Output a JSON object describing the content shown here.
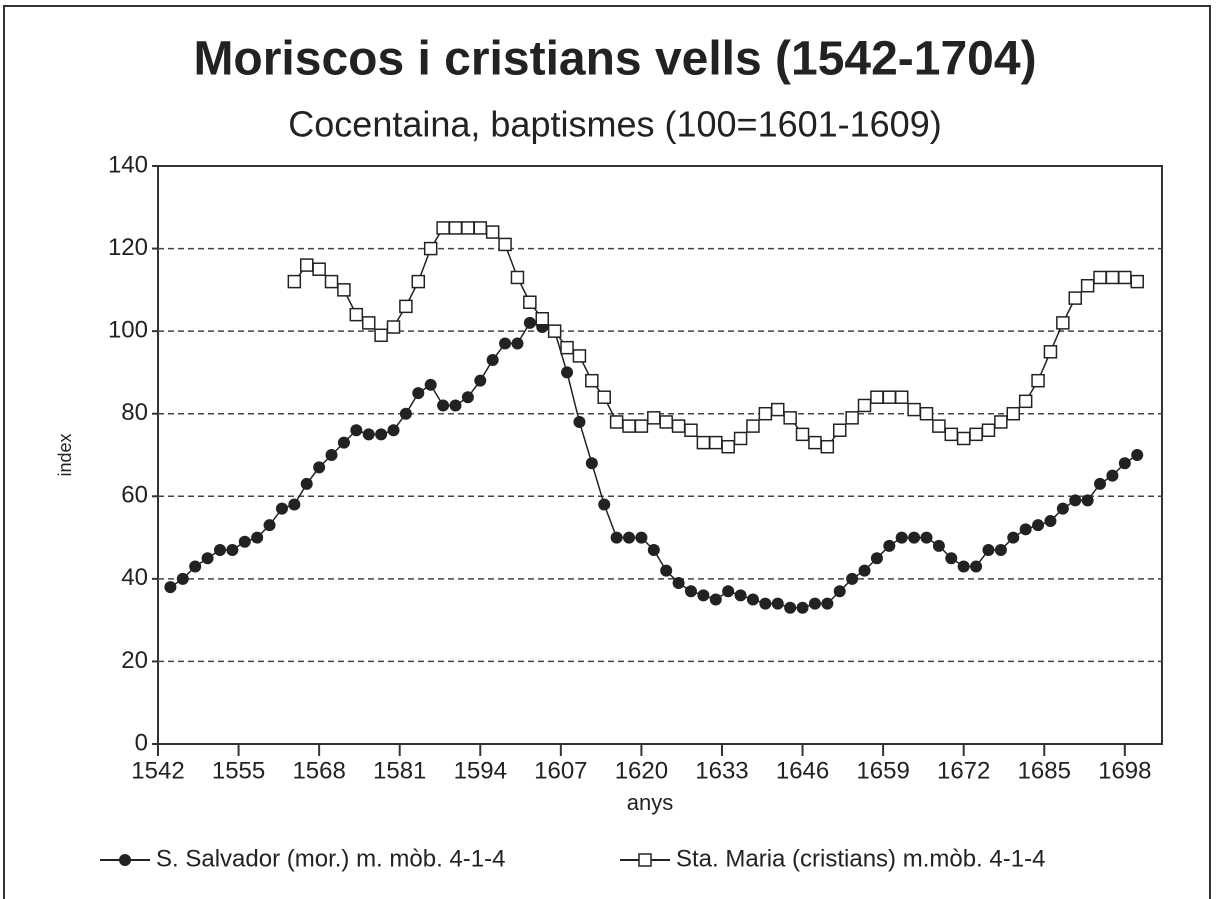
{
  "chart_data": {
    "type": "line",
    "title": "Moriscos i cristians vells (1542-1704)",
    "subtitle": "Cocentaina, baptismes (100=1601-1609)",
    "x_label": "anys",
    "y_label": "index",
    "x": [
      1544,
      1546,
      1548,
      1550,
      1552,
      1554,
      1556,
      1558,
      1560,
      1562,
      1564,
      1566,
      1568,
      1570,
      1572,
      1574,
      1576,
      1578,
      1580,
      1582,
      1584,
      1586,
      1588,
      1590,
      1592,
      1594,
      1596,
      1598,
      1600,
      1602,
      1604,
      1606,
      1608,
      1610,
      1612,
      1614,
      1616,
      1618,
      1620,
      1622,
      1624,
      1626,
      1628,
      1630,
      1632,
      1634,
      1636,
      1638,
      1640,
      1642,
      1644,
      1646,
      1648,
      1650,
      1652,
      1654,
      1656,
      1658,
      1660,
      1662,
      1664,
      1666,
      1668,
      1670,
      1672,
      1674,
      1676,
      1678,
      1680,
      1682,
      1684,
      1686,
      1688,
      1690,
      1692,
      1694,
      1696,
      1698,
      1700
    ],
    "series": [
      {
        "name": "S. Salvador (mor.) m. mòb. 4-1-4",
        "color": "#222222",
        "marker": "circle",
        "values": [
          38,
          40,
          43,
          45,
          47,
          47,
          49,
          50,
          53,
          57,
          58,
          63,
          67,
          70,
          73,
          76,
          75,
          75,
          76,
          80,
          85,
          87,
          82,
          82,
          84,
          88,
          93,
          97,
          97,
          102,
          101,
          100,
          90,
          78,
          68,
          58,
          50,
          50,
          50,
          47,
          42,
          39,
          37,
          36,
          35,
          37,
          36,
          35,
          34,
          34,
          33,
          33,
          34,
          34,
          37,
          40,
          42,
          45,
          48,
          50,
          50,
          50,
          48,
          45,
          43,
          43,
          47,
          47,
          50,
          52,
          53,
          54,
          57,
          59,
          59,
          63,
          65,
          68,
          70
        ]
      },
      {
        "name": "Sta. Maria (cristians) m.mòb. 4-1-4",
        "color": "#222222",
        "marker": "square",
        "values": [
          null,
          null,
          null,
          null,
          null,
          null,
          null,
          null,
          null,
          null,
          112,
          116,
          115,
          112,
          110,
          104,
          102,
          99,
          101,
          106,
          112,
          120,
          125,
          125,
          125,
          125,
          124,
          121,
          113,
          107,
          103,
          100,
          96,
          94,
          88,
          84,
          78,
          77,
          77,
          79,
          78,
          77,
          76,
          73,
          73,
          72,
          74,
          77,
          80,
          81,
          79,
          75,
          73,
          72,
          76,
          79,
          82,
          84,
          84,
          84,
          81,
          80,
          77,
          75,
          74,
          75,
          76,
          78,
          80,
          83,
          88,
          95,
          102,
          108,
          111,
          113,
          113,
          113,
          112
        ]
      }
    ],
    "xlim": [
      1542,
      1704
    ],
    "xticks": [
      1542,
      1555,
      1568,
      1581,
      1594,
      1607,
      1620,
      1633,
      1646,
      1659,
      1672,
      1685,
      1698
    ],
    "ylim": [
      0,
      140
    ],
    "yticks": [
      0,
      20,
      40,
      60,
      80,
      100,
      120,
      140
    ],
    "grid": true
  }
}
